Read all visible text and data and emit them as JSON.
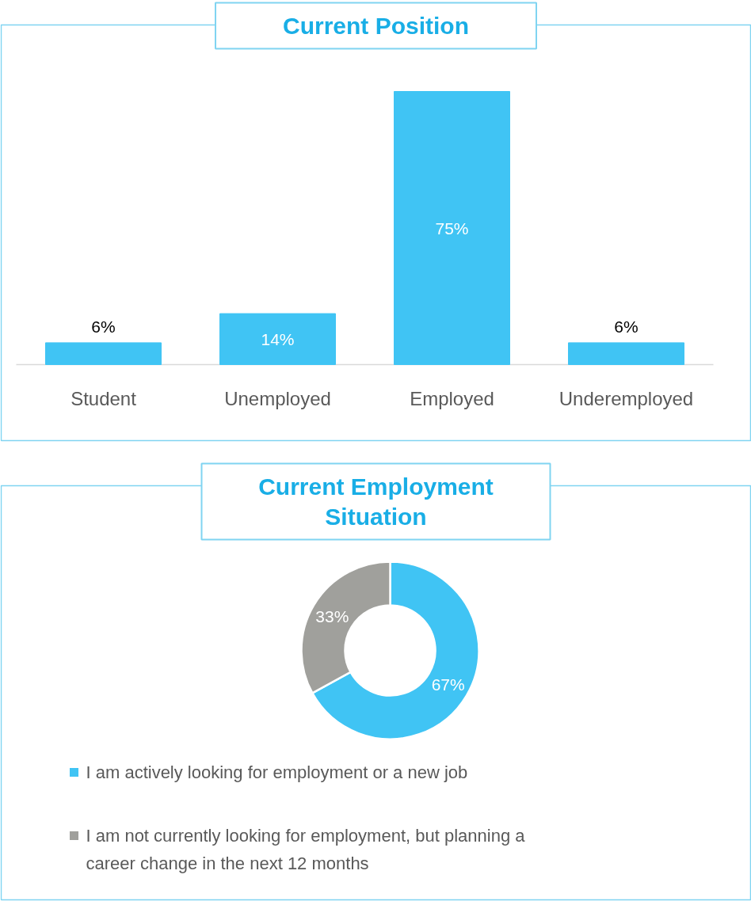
{
  "chart_data": [
    {
      "type": "bar",
      "title": "Current Position",
      "categories": [
        "Student",
        "Unemployed",
        "Employed",
        "Underemployed"
      ],
      "values": [
        6,
        14,
        75,
        6
      ],
      "color": "#40c4f4",
      "value_labels": [
        "6%",
        "14%",
        "75%",
        "6%"
      ]
    },
    {
      "type": "donut",
      "title": "Current Employment Situation",
      "categories": [
        "I am actively looking for employment or a new job",
        "I am not currently looking for employment, but planning a career change in the next 12 months"
      ],
      "values": [
        67,
        33
      ],
      "colors": [
        "#40c4f4",
        "#a0a09c"
      ],
      "value_labels": [
        "67%",
        "33%"
      ],
      "legend": "bottom"
    }
  ]
}
